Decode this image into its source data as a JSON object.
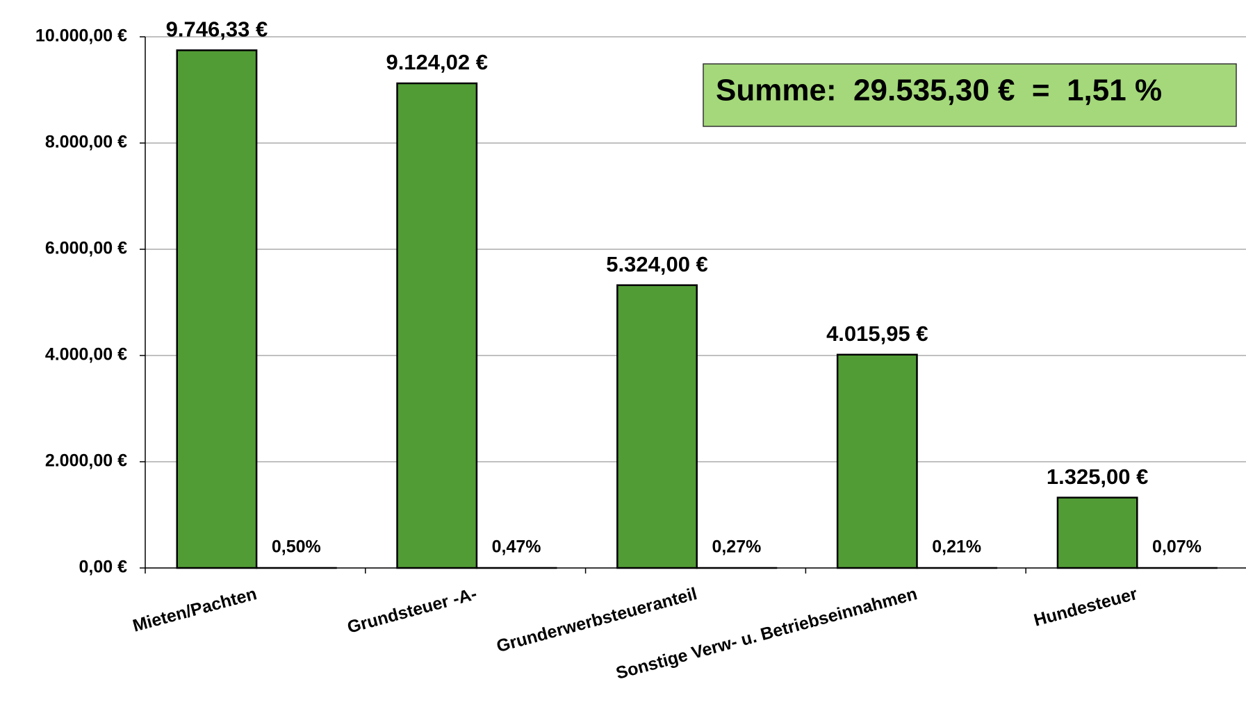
{
  "chart_data": {
    "type": "bar",
    "categories": [
      "Mieten/Pachten",
      "Grundsteuer -A-",
      "Grunderwerbsteueranteil",
      "Sonstige Verw- u. Betriebseinnahmen",
      "Hundesteuer"
    ],
    "series": [
      {
        "color": "#529c36",
        "values": [
          9746.33,
          9124.02,
          5324.0,
          4015.95,
          1325.0
        ],
        "value_labels": [
          "9.746,33 €",
          "9.124,02 €",
          "5.324,00 €",
          "4.015,95 €",
          "1.325,00 €"
        ]
      },
      {
        "color": "#529c36",
        "values": [
          0.5,
          0.47,
          0.27,
          0.21,
          0.07
        ],
        "value_labels": [
          "0,50%",
          "0,47%",
          "0,27%",
          "0,21%",
          "0,07%"
        ]
      }
    ],
    "ylim": [
      0,
      10000
    ],
    "yticks": [
      {
        "value": 0,
        "label": "0,00 €"
      },
      {
        "value": 2000,
        "label": "2.000,00 €"
      },
      {
        "value": 4000,
        "label": "4.000,00 €"
      },
      {
        "value": 6000,
        "label": "6.000,00 €"
      },
      {
        "value": 8000,
        "label": "8.000,00 €"
      },
      {
        "value": 10000,
        "label": "10.000,00 €"
      }
    ],
    "grid": true,
    "annotation": "Summe:  29.535,30 €  =  1,51 %"
  }
}
